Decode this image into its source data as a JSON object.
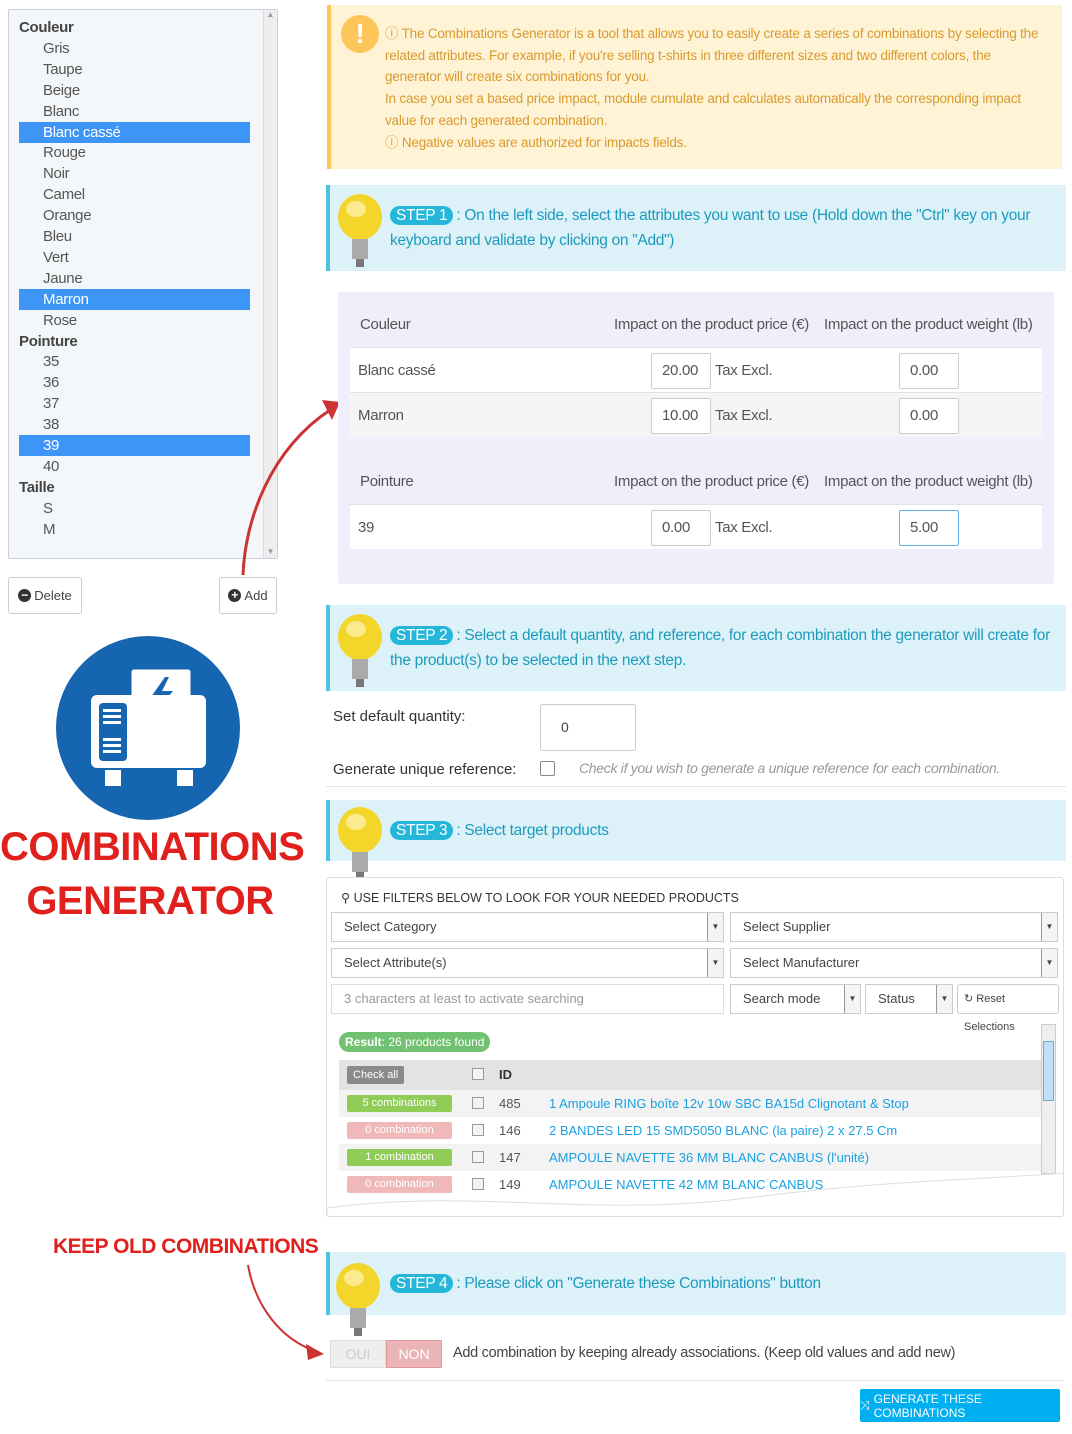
{
  "attribute_list": {
    "items": [
      {
        "label": "Couleur",
        "group": true
      },
      {
        "label": "Gris"
      },
      {
        "label": "Taupe"
      },
      {
        "label": "Beige"
      },
      {
        "label": "Blanc"
      },
      {
        "label": "Blanc cassé",
        "selected": true
      },
      {
        "label": "Rouge"
      },
      {
        "label": "Noir"
      },
      {
        "label": "Camel"
      },
      {
        "label": "Orange"
      },
      {
        "label": "Bleu"
      },
      {
        "label": "Vert"
      },
      {
        "label": "Jaune"
      },
      {
        "label": "Marron",
        "selected": true
      },
      {
        "label": "Rose"
      },
      {
        "label": "Pointure",
        "group": true
      },
      {
        "label": "35"
      },
      {
        "label": "36"
      },
      {
        "label": "37"
      },
      {
        "label": "38"
      },
      {
        "label": "39",
        "selected": true
      },
      {
        "label": "40"
      },
      {
        "label": "Taille",
        "group": true
      },
      {
        "label": "S"
      },
      {
        "label": "M"
      }
    ],
    "delete_label": "Delete",
    "add_label": "Add"
  },
  "brand": {
    "line1": "COMBINATIONS",
    "line2": "GENERATOR",
    "color": "#e0201c",
    "logo_color": "#1565b0"
  },
  "info": {
    "line1": "The Combinations Generator is a tool that allows you to easily create a series of combinations by selecting the related attributes. For example, if you're selling t-shirts in three different sizes and two different colors, the generator will create six combinations for you.",
    "line2": "In case you set a based price impact, module cumulate and calculates automatically the corresponding impact value for each generated combination.",
    "line3": "Negative values are authorized for impacts fields."
  },
  "steps": [
    {
      "badge": "STEP 1",
      "text": ": On the left side, select the attributes you want to use (Hold down the \"Ctrl\" key on your keyboard and validate by clicking on \"Add\")"
    },
    {
      "badge": "STEP 2",
      "text": ": Select a default quantity, and reference, for each combination the generator will create for the product(s) to be selected in the next step."
    },
    {
      "badge": "STEP 3",
      "text": ": Select target products"
    },
    {
      "badge": "STEP 4",
      "text": ": Please click on \"Generate these Combinations\" button"
    }
  ],
  "impacts": {
    "price_header": "Impact on the product price (€)",
    "weight_header": "Impact on the product weight (lb)",
    "tax_label": "Tax Excl.",
    "groups": [
      {
        "name": "Couleur",
        "rows": [
          {
            "label": "Blanc cassé",
            "price": "20.00",
            "weight": "0.00"
          },
          {
            "label": "Marron",
            "price": "10.00",
            "weight": "0.00"
          }
        ]
      },
      {
        "name": "Pointure",
        "rows": [
          {
            "label": "39",
            "price": "0.00",
            "weight": "5.00"
          }
        ]
      }
    ]
  },
  "defaults": {
    "quantity_label": "Set default quantity:",
    "quantity_value": "0",
    "reference_label": "Generate unique reference:",
    "reference_hint": "Check if you wish to generate a unique reference for each combination."
  },
  "filters": {
    "title": "USE FILTERS BELOW TO LOOK FOR YOUR NEEDED PRODUCTS",
    "category": "Select Category",
    "supplier": "Select Supplier",
    "attribute": "Select Attribute(s)",
    "manufacturer": "Select Manufacturer",
    "search_placeholder": "3 characters at least to activate searching",
    "search_mode": "Search mode",
    "status": "Status",
    "reset": "Reset Selections",
    "result_label": "Result",
    "result_text": ": 26 products found",
    "check_all": "Check all",
    "id_header": "ID",
    "products": [
      {
        "combos": "5 combinations",
        "ok": true,
        "id": "485",
        "name": "1 Ampoule RING boîte 12v 10w SBC BA15d Clignotant & Stop"
      },
      {
        "combos": "0 combination",
        "ok": false,
        "id": "146",
        "name": "2 BANDES LED 15 SMD5050 BLANC (la paire) 2 x 27.5 Cm"
      },
      {
        "combos": "1 combination",
        "ok": true,
        "id": "147",
        "name": "AMPOULE NAVETTE 36 MM BLANC CANBUS (l'unité)"
      },
      {
        "combos": "0 combination",
        "ok": false,
        "id": "149",
        "name": "AMPOULE NAVETTE 42 MM BLANC CANBUS"
      }
    ]
  },
  "keep_old": {
    "callout": "KEEP OLD COMBINATIONS",
    "yes": "OUI",
    "no": "NON",
    "selected": "NON",
    "description": "Add combination by keeping already associations. (Keep old values and add new)"
  },
  "generate_label": "GENERATE THESE COMBINATIONS",
  "colors": {
    "accent": "#00aff0",
    "step_bg": "#dcf2f8",
    "selected": "#3d96f7",
    "success": "#8fcd57",
    "danger": "#f0b8b8"
  }
}
